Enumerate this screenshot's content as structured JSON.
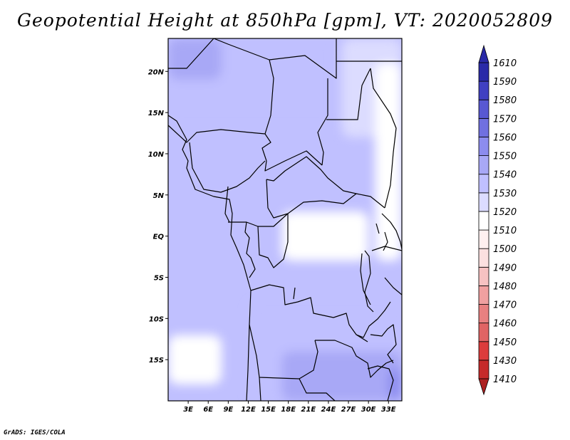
{
  "title": "Geopotential Height at 850hPa [gpm], VT: 2020052809",
  "credit": "GrADS: IGES/COLA",
  "chart_data": {
    "type": "heatmap",
    "title": "Geopotential Height at 850hPa [gpm], VT: 2020052809",
    "variable": "Geopotential Height",
    "level": "850hPa",
    "units": "gpm",
    "valid_time": "2020052809",
    "lon_range": [
      0,
      35
    ],
    "lat_range": [
      -20,
      24
    ],
    "lon_ticks": [
      "3E",
      "6E",
      "9E",
      "12E",
      "15E",
      "18E",
      "21E",
      "24E",
      "27E",
      "30E",
      "33E"
    ],
    "lon_tick_values": [
      3,
      6,
      9,
      12,
      15,
      18,
      21,
      24,
      27,
      30,
      33
    ],
    "lat_ticks": [
      "20N",
      "15N",
      "10N",
      "5N",
      "EQ",
      "5S",
      "10S",
      "15S"
    ],
    "lat_tick_values": [
      20,
      15,
      10,
      5,
      0,
      -5,
      -10,
      -15
    ],
    "colorbar": {
      "levels": [
        1410,
        1430,
        1450,
        1460,
        1470,
        1480,
        1490,
        1500,
        1510,
        1520,
        1530,
        1540,
        1550,
        1560,
        1570,
        1580,
        1590,
        1610
      ],
      "colors": [
        "#ac2020",
        "#c62a2a",
        "#dc3c3c",
        "#e06464",
        "#e88080",
        "#f0a0a0",
        "#f7c2c2",
        "#fce0e0",
        "#fff0f0",
        "#ffffff",
        "#dcdcff",
        "#c0c0ff",
        "#a8a8f6",
        "#8c8cee",
        "#7070e0",
        "#5858d2",
        "#4040c2",
        "#2a2aa8"
      ]
    },
    "regions": [
      {
        "lon": [
          0,
          35
        ],
        "lat": [
          -20,
          24
        ],
        "band": "1530-1540"
      },
      {
        "lon": [
          0,
          25
        ],
        "lat": [
          13,
          24
        ],
        "band": "1540-1550"
      },
      {
        "lon": [
          0,
          8
        ],
        "lat": [
          19,
          24
        ],
        "band": "1550-1560"
      },
      {
        "lon": [
          26,
          35
        ],
        "lat": [
          12,
          24
        ],
        "band": "1530-1540"
      },
      {
        "lon": [
          31,
          35
        ],
        "lat": [
          -3,
          21
        ],
        "band": "1520-1530"
      },
      {
        "lon": [
          17,
          30
        ],
        "lat": [
          -3,
          3
        ],
        "band": "1520-1530"
      },
      {
        "lon": [
          0,
          8
        ],
        "lat": [
          -18,
          -12
        ],
        "band": "1520-1530"
      },
      {
        "lon": [
          12,
          35
        ],
        "lat": [
          -20,
          -8
        ],
        "band": "1540-1550"
      },
      {
        "lon": [
          17,
          35
        ],
        "lat": [
          -20,
          -14
        ],
        "band": "1550-1560"
      },
      {
        "lon": [
          33,
          35
        ],
        "lat": [
          -20,
          -16
        ],
        "band": "1560-1570"
      }
    ]
  }
}
